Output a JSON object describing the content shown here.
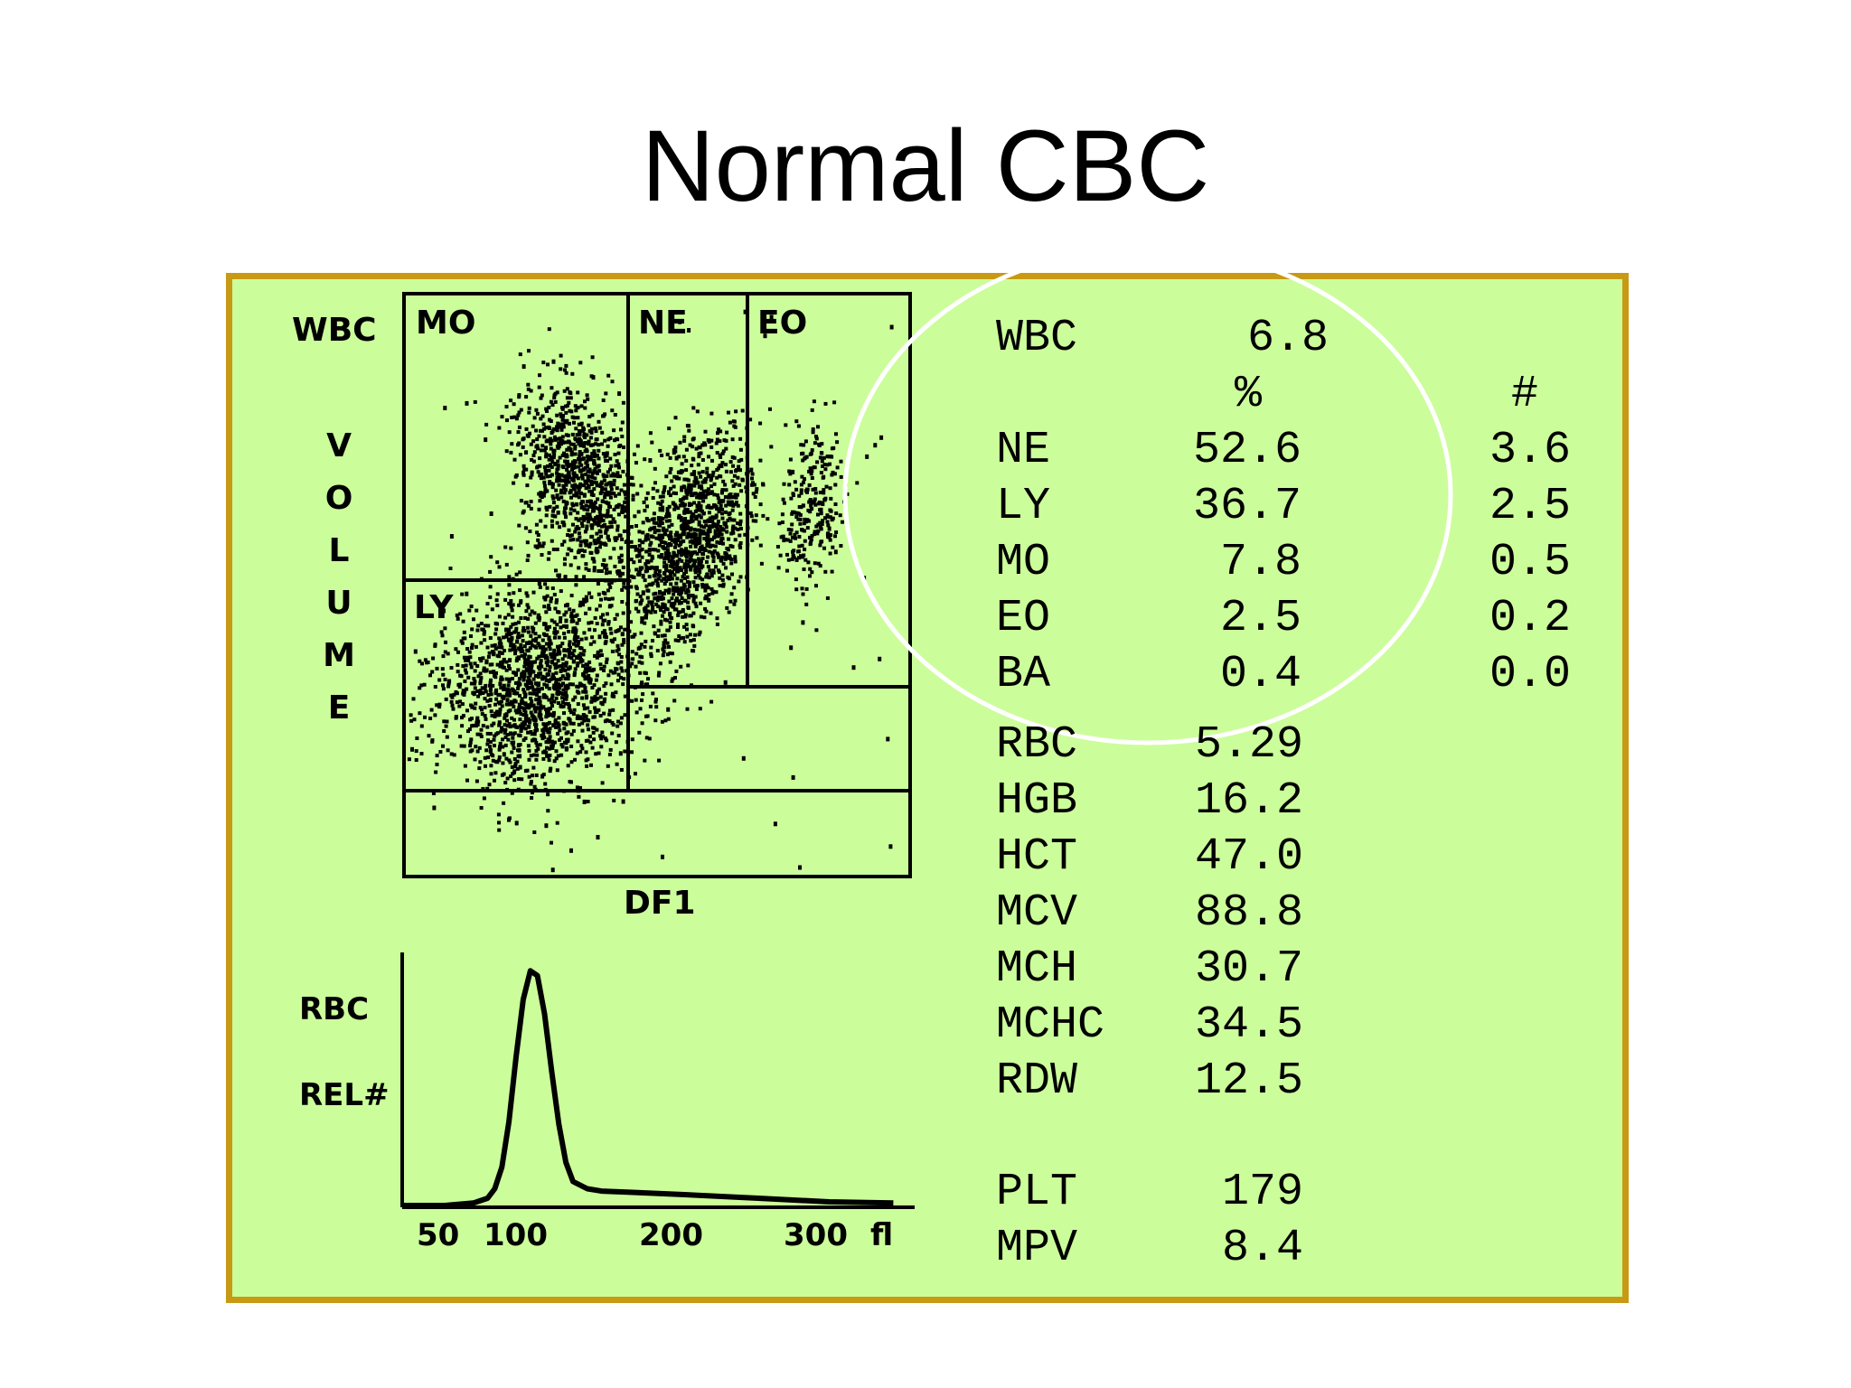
{
  "page": {
    "title": "Normal CBC"
  },
  "colors": {
    "panel_bg": "#ccfd9b",
    "panel_border": "#c89a14",
    "highlight_circle": "#ffffff",
    "ink": "#000000"
  },
  "scatter": {
    "y_label": "WBC",
    "y_axis_letters": [
      "V",
      "O",
      "L",
      "U",
      "M",
      "E"
    ],
    "x_label": "DF1",
    "regions": [
      "MO",
      "NE",
      "EO",
      "LY"
    ]
  },
  "histogram": {
    "label_line1": "RBC",
    "label_line2": "REL#",
    "ticks": [
      "50",
      "100",
      "200",
      "300"
    ],
    "unit": "fl"
  },
  "results": {
    "wbc": {
      "label": "WBC",
      "value": "6.8"
    },
    "pct_header": "%",
    "count_header": "#",
    "differential": [
      {
        "label": "NE",
        "pct": "52.6",
        "count": "3.6"
      },
      {
        "label": "LY",
        "pct": "36.7",
        "count": "2.5"
      },
      {
        "label": "MO",
        "pct": "7.8",
        "count": "0.5"
      },
      {
        "label": "EO",
        "pct": "2.5",
        "count": "0.2"
      },
      {
        "label": "BA",
        "pct": "0.4",
        "count": "0.0"
      }
    ],
    "rbc_indices": [
      {
        "label": "RBC",
        "value": "5.29"
      },
      {
        "label": "HGB",
        "value": "16.2"
      },
      {
        "label": "HCT",
        "value": "47.0"
      },
      {
        "label": "MCV",
        "value": "88.8"
      },
      {
        "label": "MCH",
        "value": "30.7"
      },
      {
        "label": "MCHC",
        "value": "34.5"
      },
      {
        "label": "RDW",
        "value": "12.5"
      }
    ],
    "platelets": [
      {
        "label": "PLT",
        "value": "179"
      },
      {
        "label": "MPV",
        "value": "8.4"
      }
    ]
  },
  "chart_data": [
    {
      "type": "scatter",
      "title": "",
      "xlabel": "DF1",
      "ylabel": "WBC VOLUME",
      "regions": [
        "MO",
        "NE",
        "EO",
        "LY"
      ],
      "clusters": [
        {
          "name": "MO",
          "relative_density": 0.35
        },
        {
          "name": "NE",
          "relative_density": 0.45
        },
        {
          "name": "EO",
          "relative_density": 0.1
        },
        {
          "name": "LY",
          "relative_density": 0.6
        }
      ]
    },
    {
      "type": "line",
      "title": "",
      "xlabel": "fl",
      "ylabel": "RBC REL#",
      "x_ticks": [
        50,
        100,
        200,
        300
      ],
      "xlim": [
        0,
        360
      ],
      "ylim": [
        0,
        1
      ],
      "x": [
        0,
        30,
        50,
        60,
        65,
        70,
        75,
        80,
        85,
        90,
        95,
        100,
        105,
        110,
        115,
        120,
        130,
        140,
        160,
        200,
        250,
        300,
        345
      ],
      "values": [
        0,
        0,
        0.01,
        0.03,
        0.07,
        0.16,
        0.35,
        0.62,
        0.86,
        0.98,
        0.96,
        0.8,
        0.56,
        0.34,
        0.18,
        0.1,
        0.07,
        0.06,
        0.055,
        0.045,
        0.03,
        0.015,
        0.01
      ]
    }
  ]
}
